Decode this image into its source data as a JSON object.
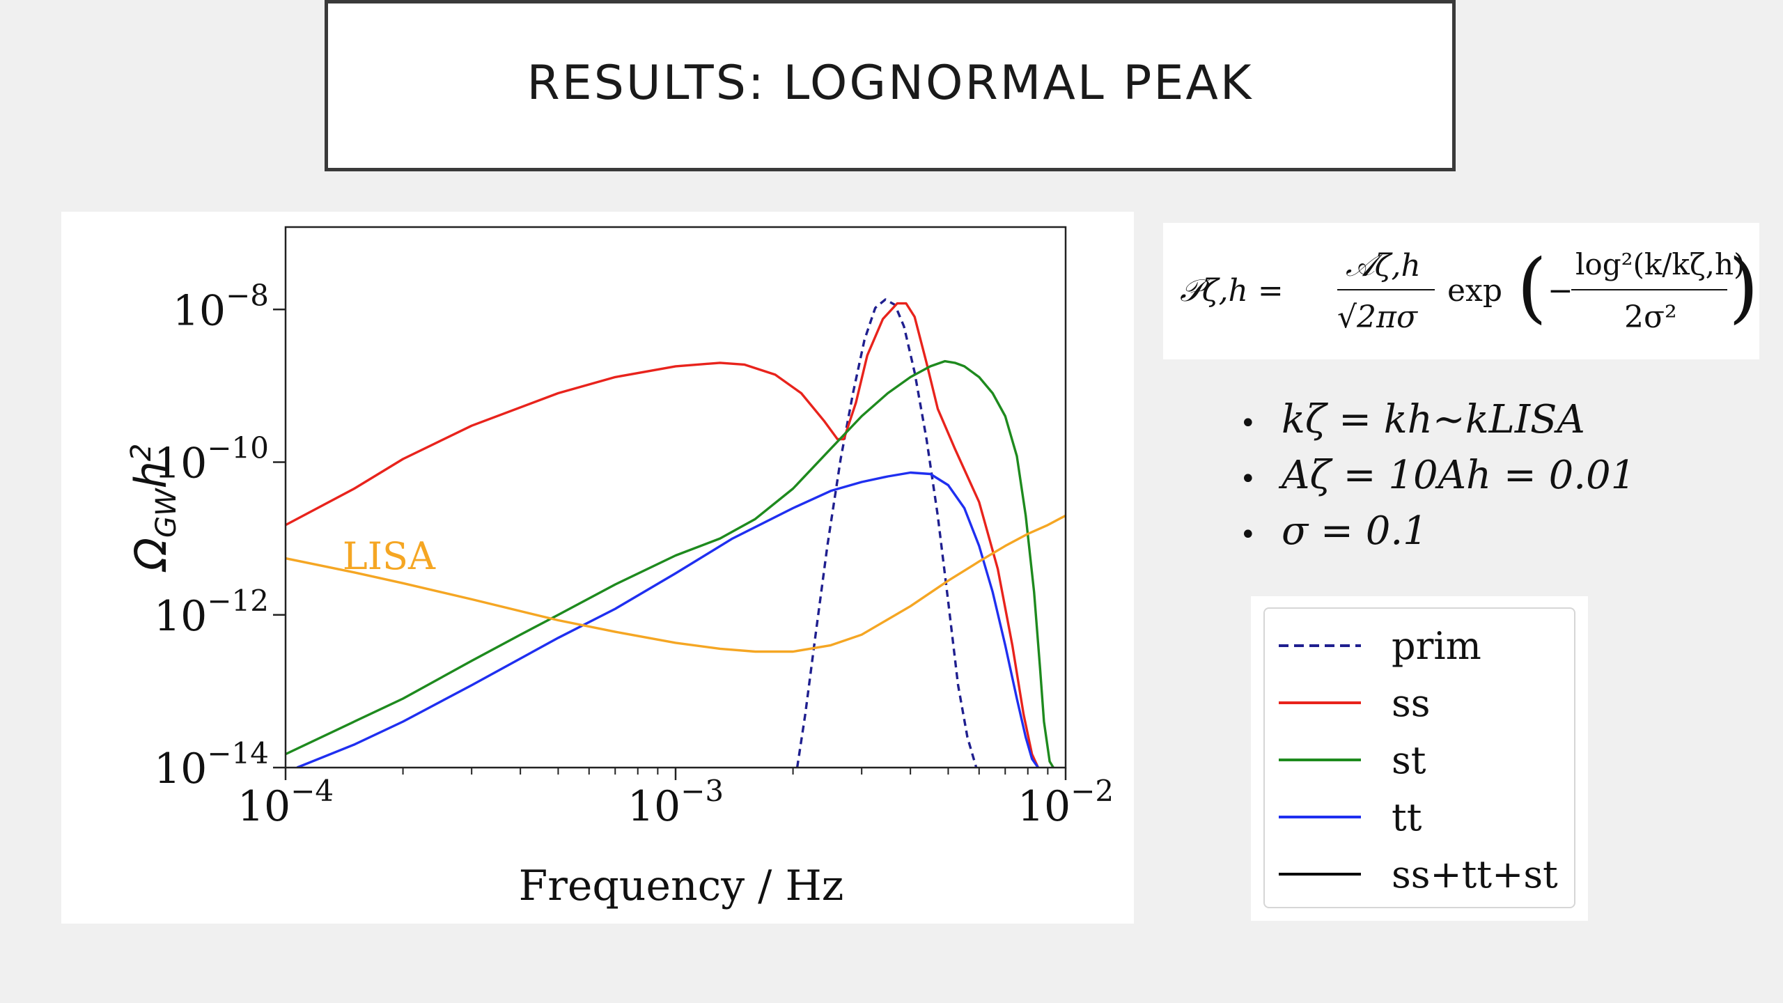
{
  "slide": {
    "title": "RESULTS: LOGNORMAL PEAK"
  },
  "formula": {
    "lhs": "𝒫ζ,h =",
    "frac1_num": "𝒜ζ,h",
    "frac1_den": "√2πσ",
    "exp_word": "exp",
    "frac2_num": "log²(k/kζ,h)",
    "frac2_den": "2σ²",
    "minus": "−"
  },
  "bullets": [
    {
      "text": "kζ = kh~kLISA"
    },
    {
      "text": "Aζ = 10Ah = 0.01"
    },
    {
      "text": "σ =  0.1"
    }
  ],
  "legend": {
    "items": [
      {
        "label": "prim",
        "color": "#1f1f8f",
        "dashed": true
      },
      {
        "label": "ss",
        "color": "#e8231c",
        "dashed": false
      },
      {
        "label": "st",
        "color": "#1e8a1e",
        "dashed": false
      },
      {
        "label": "tt",
        "color": "#1f2ff0",
        "dashed": false
      },
      {
        "label": "ss+tt+st",
        "color": "#000000",
        "dashed": false
      }
    ]
  },
  "chart_data": {
    "type": "line",
    "title": "",
    "xlabel": "Frequency / Hz",
    "ylabel": "ΩGWh²",
    "xscale": "log",
    "yscale": "log",
    "xlim": [
      0.0001,
      0.01
    ],
    "ylim": [
      1e-14,
      1.2e-07
    ],
    "x_ticks": [
      {
        "base": "10",
        "exp": "−4",
        "value": 0.0001
      },
      {
        "base": "10",
        "exp": "−3",
        "value": 0.001
      },
      {
        "base": "10",
        "exp": "−2",
        "value": 0.01
      }
    ],
    "y_ticks": [
      {
        "base": "10",
        "exp": "−8",
        "value": 1e-08
      },
      {
        "base": "10",
        "exp": "−10",
        "value": 1e-10
      },
      {
        "base": "10",
        "exp": "−12",
        "value": 1e-12
      },
      {
        "base": "10",
        "exp": "−14",
        "value": 1e-14
      }
    ],
    "annotation": {
      "text": "LISA",
      "x": 0.00014,
      "y": 4e-12,
      "color": "#f5a623"
    },
    "series": [
      {
        "name": "prim",
        "color": "#1f1f8f",
        "dashed": true,
        "x": [
          0.00205,
          0.00215,
          0.00228,
          0.00245,
          0.00265,
          0.00285,
          0.00305,
          0.00325,
          0.00345,
          0.00365,
          0.00385,
          0.0041,
          0.0044,
          0.0047,
          0.005,
          0.0053,
          0.0056,
          0.0059
        ],
        "y": [
          1e-14,
          5e-14,
          5e-13,
          8e-12,
          1.1e-10,
          8e-10,
          4e-09,
          1.05e-08,
          1.35e-08,
          1.15e-08,
          6e-09,
          1.5e-09,
          2e-10,
          2e-11,
          1.5e-12,
          1.2e-13,
          2.5e-14,
          1e-14
        ]
      },
      {
        "name": "ss",
        "color": "#e8231c",
        "dashed": false,
        "x": [
          0.0001,
          0.00015,
          0.0002,
          0.0003,
          0.0005,
          0.0007,
          0.001,
          0.0013,
          0.0015,
          0.0018,
          0.0021,
          0.0024,
          0.0026,
          0.0027,
          0.0029,
          0.0031,
          0.0034,
          0.0037,
          0.0039,
          0.0041,
          0.0044,
          0.0047,
          0.0052,
          0.006,
          0.0067,
          0.0073,
          0.0078,
          0.0082,
          0.0085
        ],
        "y": [
          1.5e-11,
          4.5e-11,
          1.1e-10,
          3e-10,
          8e-10,
          1.3e-09,
          1.8e-09,
          2e-09,
          1.9e-09,
          1.4e-09,
          8e-10,
          3.5e-10,
          2e-10,
          2e-10,
          6e-10,
          2.5e-09,
          7.5e-09,
          1.2e-08,
          1.2e-08,
          8e-09,
          2e-09,
          5e-10,
          1.5e-10,
          3e-11,
          4e-12,
          4e-13,
          5e-14,
          1.5e-14,
          1e-14
        ]
      },
      {
        "name": "st",
        "color": "#1e8a1e",
        "dashed": false,
        "x": [
          0.0001,
          0.00015,
          0.0002,
          0.0003,
          0.0004,
          0.0005,
          0.0007,
          0.001,
          0.0013,
          0.0016,
          0.002,
          0.0025,
          0.003,
          0.0035,
          0.004,
          0.0045,
          0.0049,
          0.0052,
          0.0055,
          0.006,
          0.0065,
          0.007,
          0.0075,
          0.0079,
          0.0083,
          0.0086,
          0.0088,
          0.0091,
          0.0093
        ],
        "y": [
          1.5e-14,
          4e-14,
          8e-14,
          2.5e-13,
          5.5e-13,
          1e-12,
          2.5e-12,
          6e-12,
          1e-11,
          1.8e-11,
          4.5e-11,
          1.5e-10,
          4e-10,
          8e-10,
          1.3e-09,
          1.8e-09,
          2.1e-09,
          2e-09,
          1.8e-09,
          1.3e-09,
          8e-10,
          4e-10,
          1.2e-10,
          2e-11,
          2e-12,
          2e-13,
          4e-14,
          1.2e-14,
          1e-14
        ]
      },
      {
        "name": "tt",
        "color": "#1f2ff0",
        "dashed": false,
        "x": [
          0.000107,
          0.00015,
          0.0002,
          0.0003,
          0.0005,
          0.0007,
          0.001,
          0.0014,
          0.002,
          0.0025,
          0.003,
          0.0035,
          0.004,
          0.0045,
          0.005,
          0.0055,
          0.006,
          0.0065,
          0.007,
          0.0075,
          0.0079,
          0.0082,
          0.0085
        ],
        "y": [
          1e-14,
          2e-14,
          4e-14,
          1.2e-13,
          5e-13,
          1.2e-12,
          3.5e-12,
          1e-11,
          2.5e-11,
          4.2e-11,
          5.5e-11,
          6.5e-11,
          7.3e-11,
          7e-11,
          5e-11,
          2.5e-11,
          8e-12,
          2e-12,
          4e-13,
          8e-14,
          2.5e-14,
          1.3e-14,
          1e-14
        ]
      },
      {
        "name": "LISA curve",
        "color": "#f5a623",
        "dashed": false,
        "x": [
          0.0001,
          0.00015,
          0.0002,
          0.0003,
          0.0005,
          0.0007,
          0.001,
          0.0013,
          0.0016,
          0.002,
          0.0025,
          0.003,
          0.004,
          0.005,
          0.006,
          0.007,
          0.008,
          0.009,
          0.01
        ],
        "y": [
          5.5e-12,
          3.6e-12,
          2.6e-12,
          1.6e-12,
          8.5e-13,
          6e-13,
          4.3e-13,
          3.6e-13,
          3.3e-13,
          3.3e-13,
          4e-13,
          5.5e-13,
          1.3e-12,
          2.8e-12,
          5e-12,
          8e-12,
          1.15e-11,
          1.5e-11,
          2e-11
        ]
      }
    ]
  }
}
